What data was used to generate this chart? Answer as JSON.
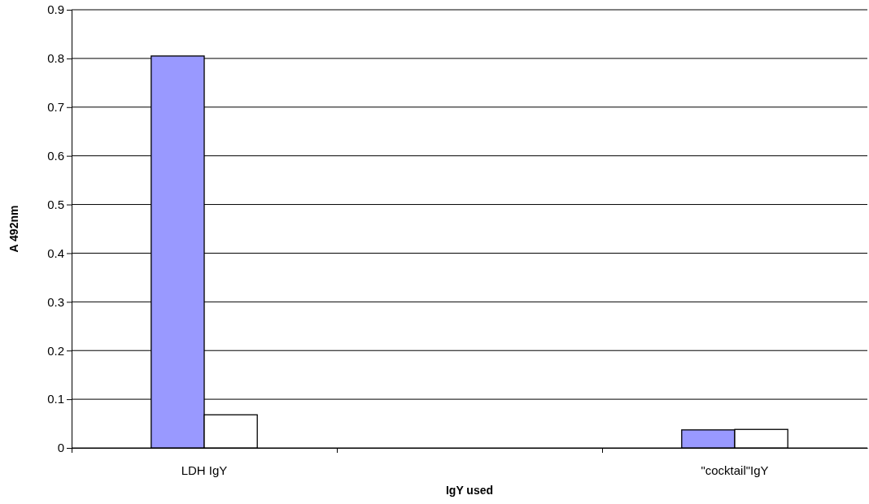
{
  "chart_data": {
    "type": "bar",
    "xlabel": "IgY used",
    "ylabel": "A 492nm",
    "categories": [
      "LDH IgY",
      null,
      "\"cocktail\"IgY"
    ],
    "series": [
      {
        "color": "#9999ff",
        "values": [
          0.805,
          null,
          0.037
        ]
      },
      {
        "color": "#ffffff",
        "values": [
          0.068,
          null,
          0.038
        ]
      }
    ],
    "ylim": [
      0,
      0.9
    ],
    "yticks": [
      0,
      0.1,
      0.2,
      0.3,
      0.4,
      0.5,
      0.6,
      0.7,
      0.8,
      0.9
    ],
    "grid": "y"
  }
}
